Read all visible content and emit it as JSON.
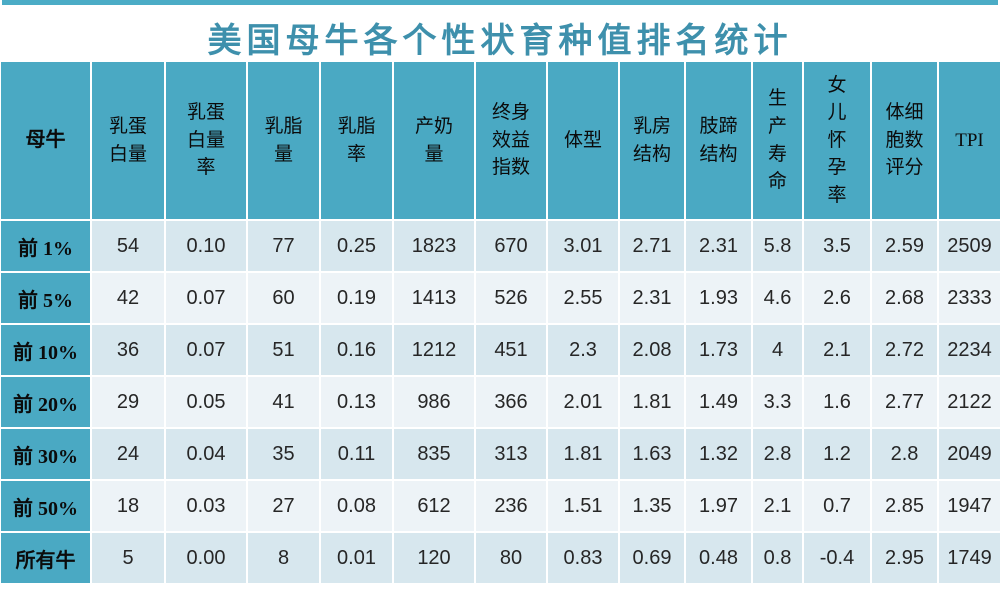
{
  "title": "美国母牛各个性状育种值排名统计",
  "colors": {
    "accent_teal": "#4AA9C3",
    "top_bar": "#4BACC6",
    "title_text": "#3E90AC",
    "band_dark": "#D7E7EE",
    "band_light": "#EDF3F7",
    "grid_line": "#FFFFFF"
  },
  "table": {
    "corner_header": "母牛",
    "column_headers": [
      "乳蛋\n白量",
      "乳蛋\n白量\n率",
      "乳脂\n量",
      "乳脂\n率",
      "产奶\n量",
      "终身\n效益\n指数",
      "体型",
      "乳房\n结构",
      "肢蹄\n结构",
      "生\n产\n寿\n命",
      "女\n儿\n怀\n孕\n率",
      "体细\n胞数\n评分",
      "TPI"
    ],
    "rows": [
      {
        "label": "前 1%",
        "values": [
          "54",
          "0.10",
          "77",
          "0.25",
          "1823",
          "670",
          "3.01",
          "2.71",
          "2.31",
          "5.8",
          "3.5",
          "2.59",
          "2509"
        ]
      },
      {
        "label": "前 5%",
        "values": [
          "42",
          "0.07",
          "60",
          "0.19",
          "1413",
          "526",
          "2.55",
          "2.31",
          "1.93",
          "4.6",
          "2.6",
          "2.68",
          "2333"
        ]
      },
      {
        "label": "前 10%",
        "values": [
          "36",
          "0.07",
          "51",
          "0.16",
          "1212",
          "451",
          "2.3",
          "2.08",
          "1.73",
          "4",
          "2.1",
          "2.72",
          "2234"
        ]
      },
      {
        "label": "前 20%",
        "values": [
          "29",
          "0.05",
          "41",
          "0.13",
          "986",
          "366",
          "2.01",
          "1.81",
          "1.49",
          "3.3",
          "1.6",
          "2.77",
          "2122"
        ]
      },
      {
        "label": "前 30%",
        "values": [
          "24",
          "0.04",
          "35",
          "0.11",
          "835",
          "313",
          "1.81",
          "1.63",
          "1.32",
          "2.8",
          "1.2",
          "2.8",
          "2049"
        ]
      },
      {
        "label": "前 50%",
        "values": [
          "18",
          "0.03",
          "27",
          "0.08",
          "612",
          "236",
          "1.51",
          "1.35",
          "1.97",
          "2.1",
          "0.7",
          "2.85",
          "1947"
        ]
      },
      {
        "label": "所有牛",
        "values": [
          "5",
          "0.00",
          "8",
          "0.01",
          "120",
          "80",
          "0.83",
          "0.69",
          "0.48",
          "0.8",
          "-0.4",
          "2.95",
          "1749"
        ]
      }
    ]
  }
}
